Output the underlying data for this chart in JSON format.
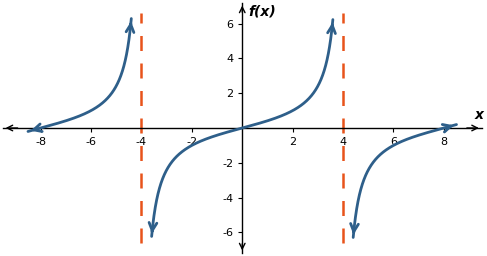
{
  "title": "f(x)",
  "xlabel": "x",
  "xlim": [
    -9.5,
    9.5
  ],
  "ylim": [
    -7.2,
    7.2
  ],
  "xticks": [
    -8,
    -6,
    -4,
    -2,
    2,
    4,
    6,
    8
  ],
  "yticks": [
    -6,
    -4,
    -2,
    2,
    4,
    6
  ],
  "asymptotes": [
    -4,
    4
  ],
  "asymptote_color": "#E8531A",
  "curve_color": "#2E5F8A",
  "background_color": "#ffffff",
  "period": 8,
  "clip_val": 6.3,
  "linewidth": 2.0
}
